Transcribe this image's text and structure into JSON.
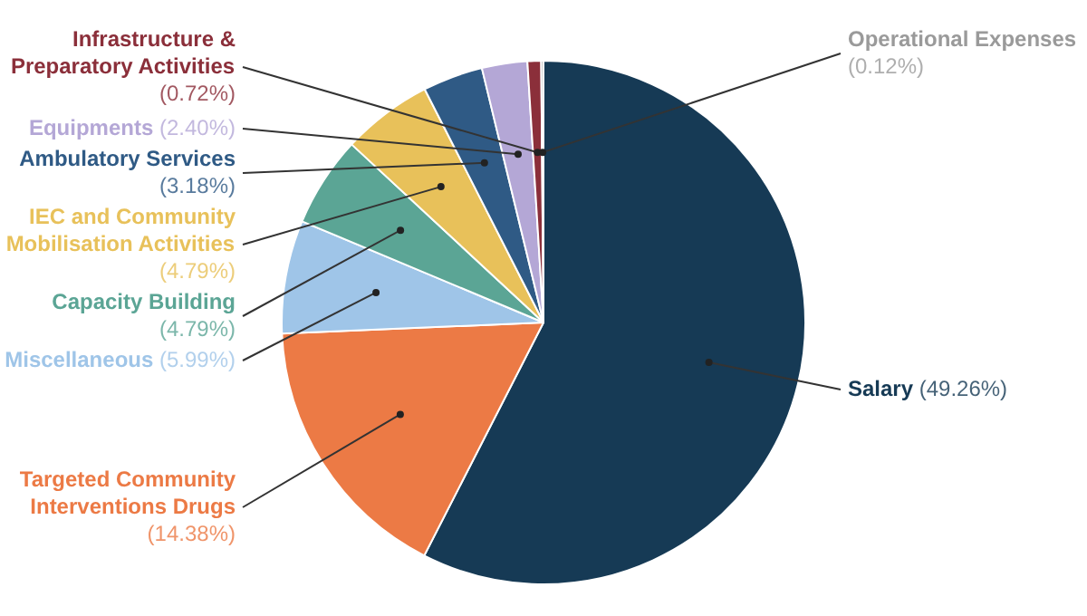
{
  "chart_data": {
    "type": "pie",
    "categories": [
      "Salary",
      "Targeted Community Interventions Drugs",
      "Miscellaneous",
      "Capacity Building",
      "IEC and Community Mobilisation Activities",
      "Ambulatory Services",
      "Equipments",
      "Infrastructure & Preparatory Activities",
      "Operational Expenses"
    ],
    "values": [
      49.26,
      14.38,
      5.99,
      4.79,
      4.79,
      3.18,
      2.4,
      0.72,
      0.12
    ],
    "value_labels": [
      "(49.26%)",
      "(14.38%)",
      "(5.99%)",
      "(4.79%)",
      "(4.79%)",
      "(3.18%)",
      "(2.40%)",
      "(0.72%)",
      "(0.12%)"
    ],
    "colors": [
      "#163a55",
      "#ec7a45",
      "#9fc5e8",
      "#5ba595",
      "#e8c15a",
      "#2f5a85",
      "#b4a7d6",
      "#8b2f3a",
      "#9a9a9a"
    ],
    "legend": false
  }
}
